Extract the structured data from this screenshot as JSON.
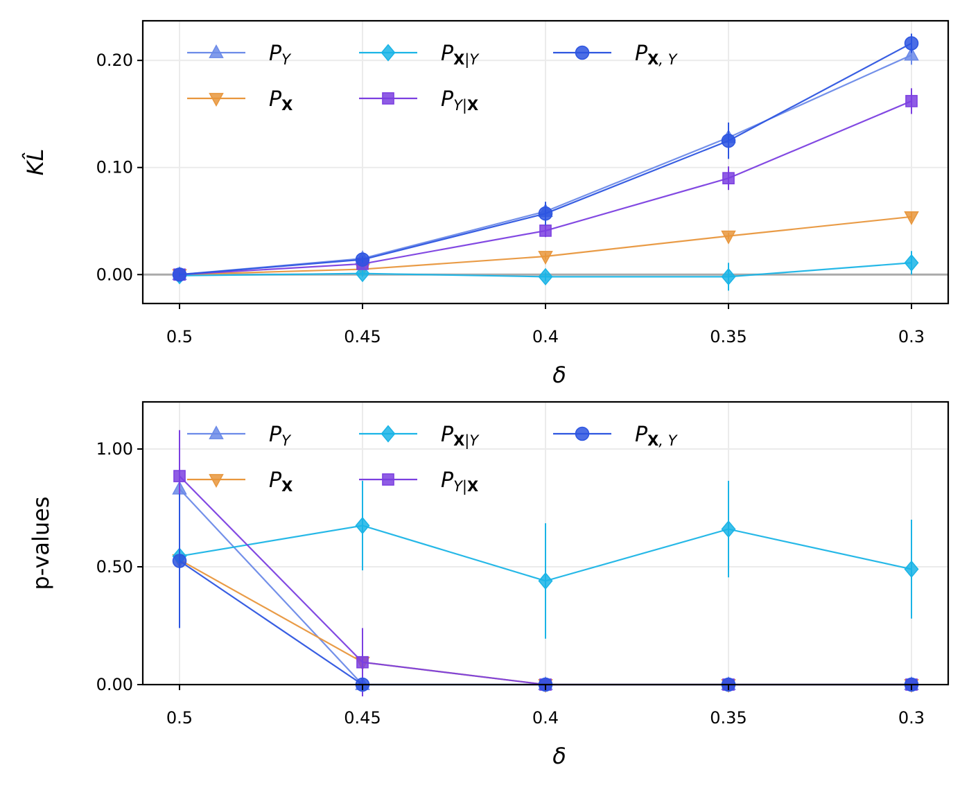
{
  "chart_data": [
    {
      "type": "line",
      "id": "kl",
      "title": "",
      "xlabel": "δ",
      "ylabel": "KL̂",
      "categories": [
        "0.5",
        "0.45",
        "0.4",
        "0.35",
        "0.3"
      ],
      "yticks": [
        0.0,
        0.1,
        0.2
      ],
      "ytick_labels": [
        "0.00",
        "0.10",
        "0.20"
      ],
      "ylim": [
        -0.027,
        0.237
      ],
      "reference_line": 0.0,
      "grid": true,
      "legend": "top-left, 3 columns",
      "series": [
        {
          "name": "P_Y",
          "sym": "P",
          "sub": "Y",
          "sub_bold": "",
          "sub_after": "",
          "sub_bold2": "",
          "color": "#6b8ae8",
          "marker": "triangle-up",
          "values": [
            0.0,
            0.015,
            0.059,
            0.128,
            0.205
          ],
          "err": [
            0.002,
            0.003,
            0.007,
            0.012,
            0.009
          ]
        },
        {
          "name": "P_X",
          "sym": "P",
          "sub": "",
          "sub_bold": "X",
          "sub_after": "",
          "sub_bold2": "",
          "color": "#e8963c",
          "marker": "triangle-down",
          "values": [
            0.0,
            0.005,
            0.017,
            0.036,
            0.054
          ],
          "err": [
            0.001,
            0.002,
            0.003,
            0.003,
            0.004
          ]
        },
        {
          "name": "P_X|Y",
          "sym": "P",
          "sub": "",
          "sub_bold": "X",
          "sub_after": "|Y",
          "sub_bold2": "",
          "color": "#1ab4e6",
          "marker": "diamond",
          "values": [
            -0.001,
            0.001,
            -0.002,
            -0.002,
            0.011
          ],
          "err": [
            0.002,
            0.003,
            0.004,
            0.013,
            0.011
          ]
        },
        {
          "name": "P_Y|X",
          "sym": "P",
          "sub": "Y|",
          "sub_bold": "",
          "sub_after": "",
          "sub_bold2": "X",
          "color": "#7b3fe0",
          "marker": "square",
          "values": [
            0.0,
            0.01,
            0.041,
            0.09,
            0.162
          ],
          "err": [
            0.001,
            0.003,
            0.006,
            0.011,
            0.012
          ]
        },
        {
          "name": "P_X,Y",
          "sym": "P",
          "sub": "",
          "sub_bold": "X",
          "sub_after": ", Y",
          "sub_bold2": "",
          "color": "#2d55e0",
          "marker": "circle",
          "values": [
            0.0,
            0.014,
            0.057,
            0.125,
            0.216
          ],
          "err": [
            0.002,
            0.003,
            0.011,
            0.017,
            0.009
          ]
        }
      ]
    },
    {
      "type": "line",
      "id": "pval",
      "title": "",
      "xlabel": "δ",
      "ylabel": "p-values",
      "categories": [
        "0.5",
        "0.45",
        "0.4",
        "0.35",
        "0.3"
      ],
      "yticks": [
        0.0,
        0.5,
        1.0
      ],
      "ytick_labels": [
        "0.00",
        "0.50",
        "1.00"
      ],
      "ylim": [
        0.0,
        1.2
      ],
      "grid": true,
      "legend": "top-left, 3 columns",
      "series": [
        {
          "name": "P_Y",
          "sym": "P",
          "sub": "Y",
          "sub_bold": "",
          "sub_after": "",
          "sub_bold2": "",
          "color": "#6b8ae8",
          "marker": "triangle-up",
          "values": [
            0.83,
            0.0,
            0.0,
            0.0,
            0.0
          ],
          "err": [
            0.2,
            0.0,
            0.0,
            0.0,
            0.0
          ]
        },
        {
          "name": "P_X",
          "sym": "P",
          "sub": "",
          "sub_bold": "X",
          "sub_after": "",
          "sub_bold2": "",
          "color": "#e8963c",
          "marker": "triangle-down",
          "values": [
            0.53,
            0.095,
            0.0,
            0.0,
            0.0
          ],
          "err": [
            0.0,
            0.0,
            0.0,
            0.0,
            0.0
          ]
        },
        {
          "name": "P_X|Y",
          "sym": "P",
          "sub": "",
          "sub_bold": "X",
          "sub_after": "|Y",
          "sub_bold2": "",
          "color": "#1ab4e6",
          "marker": "diamond",
          "values": [
            0.545,
            0.675,
            0.44,
            0.66,
            0.49
          ],
          "err": [
            0.0,
            0.19,
            0.245,
            0.205,
            0.21
          ]
        },
        {
          "name": "P_Y|X",
          "sym": "P",
          "sub": "Y|",
          "sub_bold": "",
          "sub_after": "",
          "sub_bold2": "X",
          "color": "#7b3fe0",
          "marker": "square",
          "values": [
            0.885,
            0.095,
            0.0,
            0.0,
            0.0
          ],
          "err": [
            0.195,
            0.145,
            0.0,
            0.0,
            0.0
          ]
        },
        {
          "name": "P_X,Y",
          "sym": "P",
          "sub": "",
          "sub_bold": "X",
          "sub_after": ", Y",
          "sub_bold2": "",
          "color": "#2d55e0",
          "marker": "circle",
          "values": [
            0.525,
            0.0,
            0.0,
            0.0,
            0.0
          ],
          "err": [
            0.285,
            0.0,
            0.0,
            0.0,
            0.0
          ]
        }
      ]
    }
  ]
}
